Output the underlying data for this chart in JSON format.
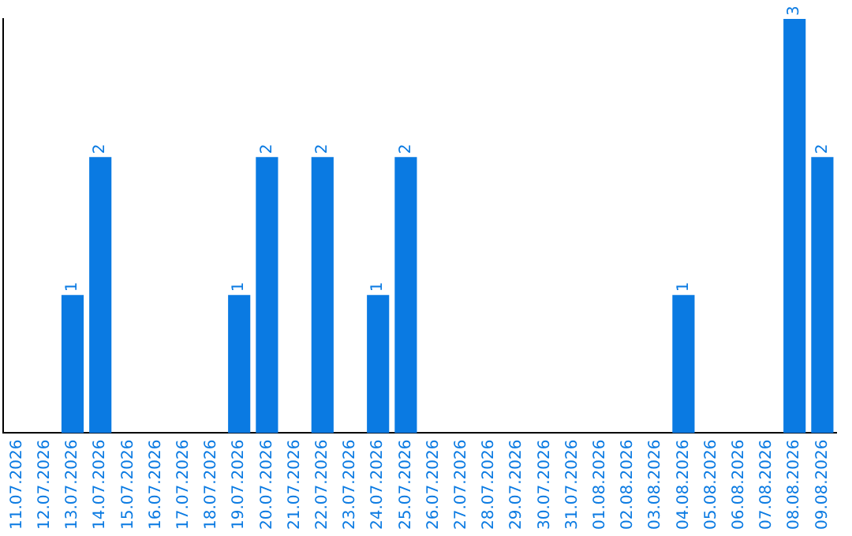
{
  "chart_data": {
    "type": "bar",
    "categories": [
      "11.07.2026",
      "12.07.2026",
      "13.07.2026",
      "14.07.2026",
      "15.07.2026",
      "16.07.2026",
      "17.07.2026",
      "18.07.2026",
      "19.07.2026",
      "20.07.2026",
      "21.07.2026",
      "22.07.2026",
      "23.07.2026",
      "24.07.2026",
      "25.07.2026",
      "26.07.2026",
      "27.07.2026",
      "28.07.2026",
      "29.07.2026",
      "30.07.2026",
      "31.07.2026",
      "01.08.2026",
      "02.08.2026",
      "03.08.2026",
      "04.08.2026",
      "05.08.2026",
      "06.08.2026",
      "07.08.2026",
      "08.08.2026",
      "09.08.2026"
    ],
    "values": [
      0,
      0,
      1,
      2,
      0,
      0,
      0,
      0,
      1,
      2,
      0,
      2,
      0,
      1,
      2,
      0,
      0,
      0,
      0,
      0,
      0,
      0,
      0,
      0,
      1,
      0,
      0,
      0,
      3,
      2
    ],
    "value_labels": [
      null,
      null,
      "1",
      "2",
      null,
      null,
      null,
      null,
      "1",
      "2",
      null,
      "2",
      null,
      "1",
      "2",
      null,
      null,
      null,
      null,
      null,
      null,
      null,
      null,
      null,
      "1",
      null,
      null,
      null,
      "3",
      "2"
    ],
    "color": "#0a7ae2",
    "tick_labels": "x",
    "grid": false,
    "legend": false
  }
}
